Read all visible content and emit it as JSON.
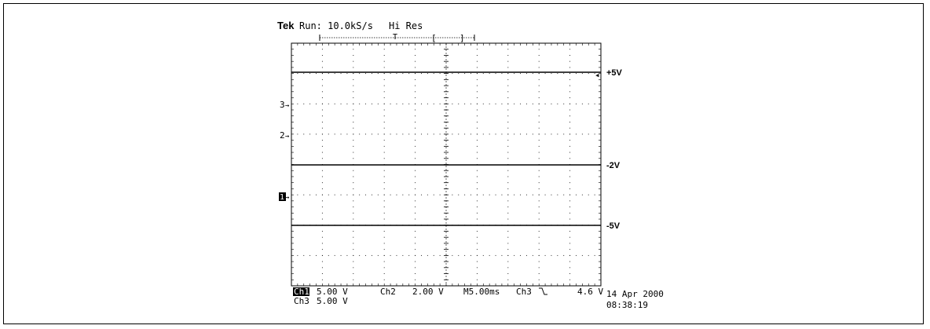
{
  "header": {
    "brand": "Tek",
    "run_status": "Run: 10.0kS/s",
    "acq_mode": "Hi Res",
    "trigger_marker": "T"
  },
  "channel_markers": [
    {
      "label": "3",
      "id": "ch3"
    },
    {
      "label": "2",
      "id": "ch2"
    },
    {
      "label": "1",
      "id": "ch1"
    }
  ],
  "traces": [
    {
      "id": "trace-plus5v",
      "label": "+5V"
    },
    {
      "id": "trace-minus2v",
      "label": "-2V"
    },
    {
      "id": "trace-minus5v",
      "label": "-5V"
    }
  ],
  "readout": {
    "ch1_label": "Ch1",
    "ch1_scale": "5.00 V",
    "ch2_label": "Ch2",
    "ch2_scale": "2.00 V",
    "ch3_label": "Ch3",
    "ch3_scale": "5.00 V",
    "timebase": "M5.00ms",
    "trigger_source": "Ch3",
    "trigger_slope_icon": "falling-edge-icon",
    "trigger_level": "4.6 V",
    "date": "14 Apr 2000",
    "time": "08:38:19"
  }
}
